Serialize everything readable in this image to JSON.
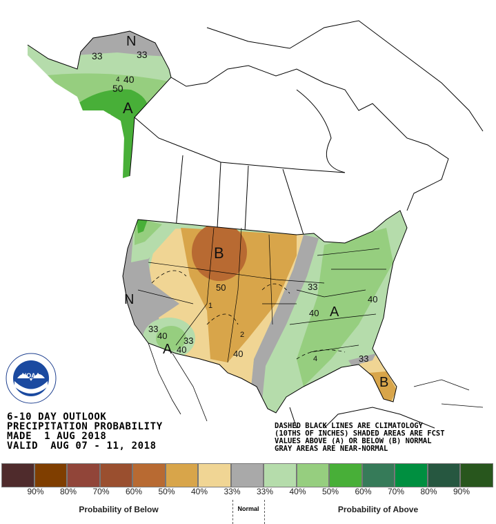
{
  "header": {
    "line1": "6-10 DAY OUTLOOK",
    "line2": "PRECIPITATION PROBABILITY",
    "line3": "MADE  1 AUG 2018",
    "line4": "VALID  AUG 07 - 11, 2018"
  },
  "note": {
    "line1": "DASHED BLACK LINES ARE CLIMATOLOGY",
    "line2": "(10THS OF INCHES) SHADED AREAS ARE FCST",
    "line3": "VALUES ABOVE (A) OR BELOW (B) NORMAL",
    "line4": "GRAY AREAS ARE NEAR-NORMAL"
  },
  "logo": {
    "text": "NOAA",
    "ring_text": "NATIONAL OCEANIC AND ATMOSPHERIC ADMINISTRATION - U.S. DEPARTMENT OF COMMERCE"
  },
  "map_labels": {
    "ak_n": "N",
    "ak_33a": "33",
    "ak_33b": "33",
    "ak_40": "40",
    "ak_50": "50",
    "ak_a": "A",
    "ak_clim": "4",
    "us_b": "B",
    "us_50": "50",
    "us_n": "N",
    "us_33_sw1": "33",
    "us_40_sw1": "40",
    "us_a_sw": "A",
    "us_33_sw2": "33",
    "us_40_sw2": "40",
    "us_clim_2a": "2",
    "us_40_tx": "40",
    "us_clim_1": "1",
    "us_33_mw": "33",
    "us_40_mw": "40",
    "us_a_e": "A",
    "us_40_e": "40",
    "us_clim_4": "4",
    "us_33_se": "33",
    "us_b_fl": "B"
  },
  "legend": {
    "colors": [
      "#4f2b2c",
      "#7f3e00",
      "#914539",
      "#9a4f2f",
      "#b86a32",
      "#d8a54a",
      "#f0d594",
      "#a9a9a9",
      "#b5dcab",
      "#96ce7f",
      "#48af38",
      "#367b59",
      "#008f40",
      "#265740",
      "#28561d"
    ],
    "labels": [
      "90%",
      "80%",
      "70%",
      "60%",
      "50%",
      "40%",
      "33%",
      "33%",
      "40%",
      "50%",
      "60%",
      "70%",
      "80%",
      "90%"
    ],
    "below_caption": "Probability of Below",
    "normal_caption": "Normal",
    "above_caption": "Probability of Above"
  }
}
